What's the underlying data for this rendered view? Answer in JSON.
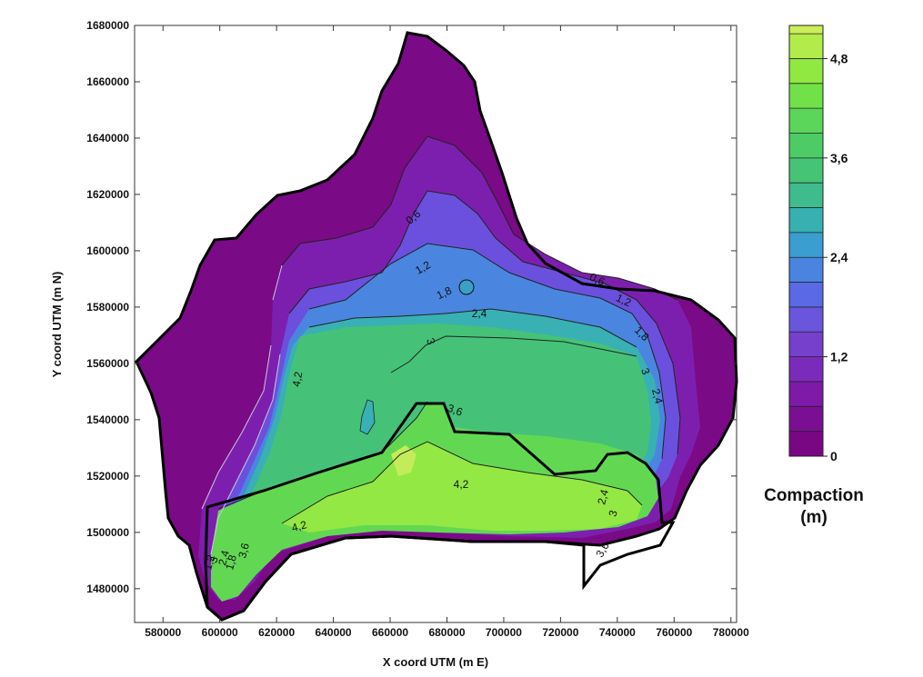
{
  "chart_data": {
    "type": "contour",
    "xlabel": "X coord UTM (m E)",
    "ylabel": "Y coord UTM (m N)",
    "xlim": [
      570000,
      782000
    ],
    "ylim": [
      1468000,
      1680000
    ],
    "x_ticks": [
      "580000",
      "600000",
      "620000",
      "640000",
      "660000",
      "680000",
      "700000",
      "720000",
      "740000",
      "760000",
      "780000"
    ],
    "y_ticks": [
      "1480000",
      "1500000",
      "1520000",
      "1540000",
      "1560000",
      "1580000",
      "1600000",
      "1620000",
      "1640000",
      "1660000",
      "1680000"
    ],
    "colorbar": {
      "title_line1": "Compaction",
      "title_line2": "(m)",
      "range": [
        0,
        5.2
      ],
      "labels": [
        "0",
        "1,2",
        "2,4",
        "3,6",
        "4,8"
      ],
      "levels": [
        0,
        0.3,
        0.6,
        0.9,
        1.2,
        1.5,
        1.8,
        2.1,
        2.4,
        2.7,
        3.0,
        3.3,
        3.6,
        3.9,
        4.2,
        4.5,
        4.8,
        5.1
      ],
      "colors": [
        "#790783",
        "#7b0f94",
        "#7d1aa8",
        "#7b2bbb",
        "#7640cc",
        "#6a55dd",
        "#5a6ae6",
        "#4a84e0",
        "#3a9ed0",
        "#36b0b0",
        "#3fbc8e",
        "#46c476",
        "#4dcc66",
        "#5bd65a",
        "#72e048",
        "#90e840",
        "#b2ec4a",
        "#ccee58"
      ],
      "contour_labels": [
        "0,6",
        "1,2",
        "1,8",
        "2,4",
        "3",
        "3,6",
        "4,2",
        "0,6",
        "1,2",
        "1,8",
        "3",
        "2,4",
        "4,2",
        "3,6",
        "2,4",
        "3",
        "1,2",
        "1,8",
        "2,4",
        "3",
        "3,6",
        "4,2"
      ]
    }
  }
}
